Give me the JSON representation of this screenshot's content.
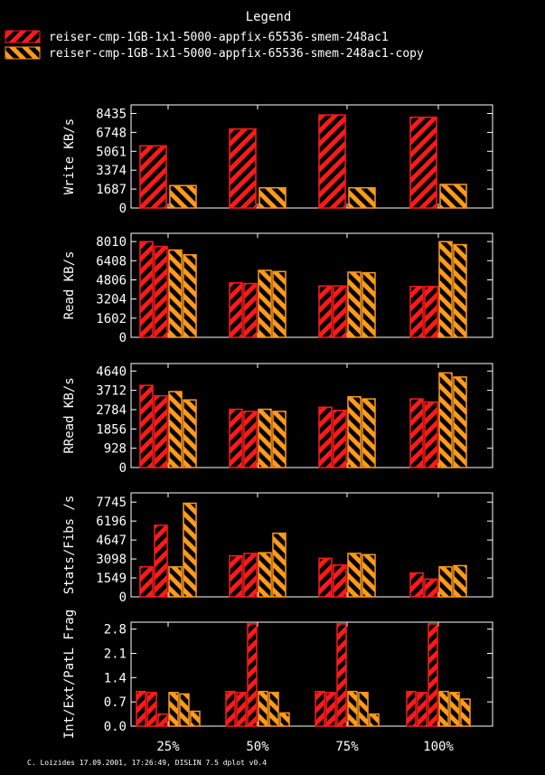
{
  "legend": {
    "title": "Legend",
    "entries": [
      {
        "label": "reiser-cmp-1GB-1x1-5000-appfix-65536-smem-248ac1",
        "color": "#ff1a1a"
      },
      {
        "label": "reiser-cmp-1GB-1x1-5000-appfix-65536-smem-248ac1-copy",
        "color": "#ff9a1a"
      }
    ]
  },
  "footer": "C. Loizides 17.09.2001, 17:26:49, DISLIN 7.5 dplot v0.4",
  "chart_data": [
    {
      "type": "bar",
      "ylabel": "Write KB/s",
      "categories": [
        "25%",
        "50%",
        "75%",
        "100%"
      ],
      "yticks": [
        "0",
        "1687",
        "3374",
        "5061",
        "6748",
        "8435"
      ],
      "ylim": [
        0,
        9200
      ],
      "series": [
        {
          "name": "reiser-cmp-1GB-1x1-5000-appfix-65536-smem-248ac1",
          "values": [
            5550,
            7050,
            8300,
            8100
          ]
        },
        {
          "name": "reiser-cmp-1GB-1x1-5000-appfix-65536-smem-248ac1-copy",
          "values": [
            2000,
            1800,
            1800,
            2100
          ]
        }
      ]
    },
    {
      "type": "bar",
      "ylabel": "Read KB/s",
      "categories": [
        "25%",
        "50%",
        "75%",
        "100%"
      ],
      "yticks": [
        "0",
        "1602",
        "3204",
        "4806",
        "6408",
        "8010"
      ],
      "ylim": [
        0,
        8700
      ],
      "series": [
        {
          "name": "reiser-cmp-1GB-1x1-5000-appfix-65536-smem-248ac1",
          "values": [
            8000,
            4550,
            4300,
            4250
          ]
        },
        {
          "name": "reiser-cmp-1GB-1x1-5000-appfix-65536-smem-248ac1",
          "values": [
            7600,
            4500,
            4300,
            4250
          ]
        },
        {
          "name": "reiser-cmp-1GB-1x1-5000-appfix-65536-smem-248ac1-copy",
          "values": [
            7300,
            5600,
            5450,
            8000
          ]
        },
        {
          "name": "reiser-cmp-1GB-1x1-5000-appfix-65536-smem-248ac1-copy",
          "values": [
            6900,
            5500,
            5400,
            7750
          ]
        }
      ]
    },
    {
      "type": "bar",
      "ylabel": "RRead KB/s",
      "categories": [
        "25%",
        "50%",
        "75%",
        "100%"
      ],
      "yticks": [
        "0",
        "928",
        "1856",
        "2784",
        "3712",
        "4640"
      ],
      "ylim": [
        0,
        5000
      ],
      "series": [
        {
          "name": "reiser-cmp-1GB-1x1-5000-appfix-65536-smem-248ac1",
          "values": [
            3950,
            2800,
            2900,
            3300
          ]
        },
        {
          "name": "reiser-cmp-1GB-1x1-5000-appfix-65536-smem-248ac1",
          "values": [
            3450,
            2700,
            2750,
            3150
          ]
        },
        {
          "name": "reiser-cmp-1GB-1x1-5000-appfix-65536-smem-248ac1-copy",
          "values": [
            3650,
            2800,
            3400,
            4550
          ]
        },
        {
          "name": "reiser-cmp-1GB-1x1-5000-appfix-65536-smem-248ac1-copy",
          "values": [
            3250,
            2700,
            3300,
            4350
          ]
        }
      ]
    },
    {
      "type": "bar",
      "ylabel": "Stats/Fibs /s",
      "categories": [
        "25%",
        "50%",
        "75%",
        "100%"
      ],
      "yticks": [
        "0",
        "1549",
        "3098",
        "4647",
        "6196",
        "7745"
      ],
      "ylim": [
        0,
        8500
      ],
      "series": [
        {
          "name": "reiser-cmp-1GB-1x1-5000-appfix-65536-smem-248ac1",
          "values": [
            2450,
            3350,
            3150,
            1950
          ]
        },
        {
          "name": "reiser-cmp-1GB-1x1-5000-appfix-65536-smem-248ac1",
          "values": [
            5850,
            3550,
            2600,
            1450
          ]
        },
        {
          "name": "reiser-cmp-1GB-1x1-5000-appfix-65536-smem-248ac1-copy",
          "values": [
            2450,
            3600,
            3550,
            2450
          ]
        },
        {
          "name": "reiser-cmp-1GB-1x1-5000-appfix-65536-smem-248ac1-copy",
          "values": [
            7650,
            5200,
            3450,
            2550
          ]
        }
      ]
    },
    {
      "type": "bar",
      "ylabel": "Int/Ext/PatL Frag",
      "categories": [
        "25%",
        "50%",
        "75%",
        "100%"
      ],
      "yticks": [
        "0.0",
        "0.7",
        "1.4",
        "2.1",
        "2.8"
      ],
      "ylim": [
        0,
        3.0
      ],
      "series": [
        {
          "name": "reiser-cmp-1GB-1x1-5000-appfix-65536-smem-248ac1",
          "values": [
            1.0,
            1.0,
            1.0,
            1.0
          ]
        },
        {
          "name": "reiser-cmp-1GB-1x1-5000-appfix-65536-smem-248ac1",
          "values": [
            0.97,
            0.97,
            0.97,
            0.97
          ]
        },
        {
          "name": "reiser-cmp-1GB-1x1-5000-appfix-65536-smem-248ac1",
          "values": [
            0.35,
            2.95,
            2.95,
            2.95
          ]
        },
        {
          "name": "reiser-cmp-1GB-1x1-5000-appfix-65536-smem-248ac1-copy",
          "values": [
            0.97,
            1.0,
            1.0,
            1.0
          ]
        },
        {
          "name": "reiser-cmp-1GB-1x1-5000-appfix-65536-smem-248ac1-copy",
          "values": [
            0.93,
            0.97,
            0.97,
            0.97
          ]
        },
        {
          "name": "reiser-cmp-1GB-1x1-5000-appfix-65536-smem-248ac1-copy",
          "values": [
            0.43,
            0.38,
            0.35,
            0.78
          ]
        }
      ]
    }
  ]
}
